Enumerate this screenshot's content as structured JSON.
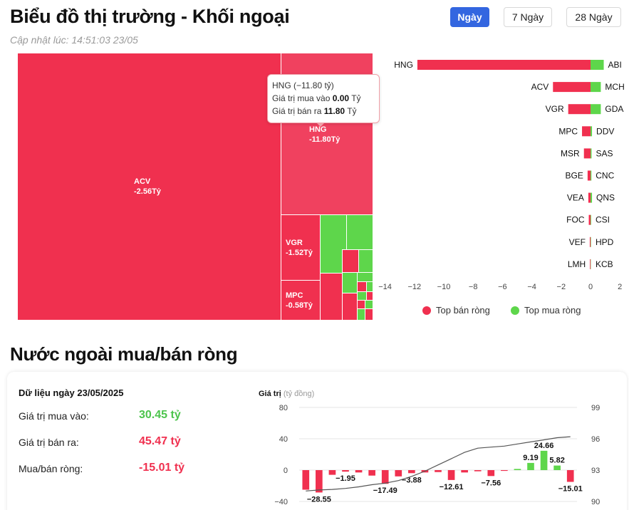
{
  "header": {
    "title": "Biểu đồ thị trường - Khối ngoại",
    "updated": "Cập nhật lúc: 14:51:03 23/05",
    "tabs": [
      {
        "label": "Ngày",
        "active": true
      },
      {
        "label": "7 Ngày",
        "active": false
      },
      {
        "label": "28 Ngày",
        "active": false
      }
    ]
  },
  "treemap": {
    "labels": {
      "acv_name": "ACV",
      "acv_value": "-2.56Tỷ",
      "hng_name": "HNG",
      "hng_value": "-11.80Tỷ",
      "vgr_name": "VGR",
      "vgr_value": "-1.52Tỷ",
      "mpc_name": "MPC",
      "mpc_value": "-0.58Tỷ"
    },
    "colors": {
      "sell": "#f0304f",
      "buy": "#5ed64b"
    }
  },
  "tooltip": {
    "title": "HNG (−11.80 tỷ)",
    "buy_label": "Giá trị mua vào",
    "buy_value": "0.00",
    "buy_unit": "Tỷ",
    "sell_label": "Giá trị bán ra",
    "sell_value": "11.80",
    "sell_unit": "Tỷ"
  },
  "legend": {
    "sell": "Top bán ròng",
    "buy": "Top mua ròng"
  },
  "net_section": {
    "title": "Nước ngoài mua/bán ròng",
    "date_label": "Dữ liệu ngày 23/05/2025",
    "rows": [
      {
        "label": "Giá trị mua vào:",
        "value": "30.45 tỷ"
      },
      {
        "label": "Giá trị bán ra:",
        "value": "45.47 tỷ"
      },
      {
        "label": "Mua/bán ròng:",
        "value": "-15.01 tỷ"
      }
    ],
    "chart_title": "Giá trị",
    "chart_unit": "(tỷ đồng)"
  },
  "chart_data": [
    {
      "type": "bar",
      "orientation": "horizontal",
      "rows": [
        {
          "sell": "HNG",
          "sell_value": -11.8,
          "buy": "ABI",
          "buy_value": 0.9
        },
        {
          "sell": "ACV",
          "sell_value": -2.56,
          "buy": "MCH",
          "buy_value": 0.7
        },
        {
          "sell": "VGR",
          "sell_value": -1.52,
          "buy": "GDA",
          "buy_value": 0.7
        },
        {
          "sell": "MPC",
          "sell_value": -0.58,
          "buy": "DDV",
          "buy_value": 0.1
        },
        {
          "sell": "MSR",
          "sell_value": -0.45,
          "buy": "SAS",
          "buy_value": 0.07
        },
        {
          "sell": "BGE",
          "sell_value": -0.2,
          "buy": "CNC",
          "buy_value": 0.06
        },
        {
          "sell": "VEA",
          "sell_value": -0.15,
          "buy": "QNS",
          "buy_value": 0.1
        },
        {
          "sell": "FOC",
          "sell_value": -0.12,
          "buy": "CSI",
          "buy_value": 0.04
        },
        {
          "sell": "VEF",
          "sell_value": -0.05,
          "buy": "HPD",
          "buy_value": 0.03
        },
        {
          "sell": "LMH",
          "sell_value": -0.04,
          "buy": "KCB",
          "buy_value": 0.02
        }
      ],
      "xlim": [
        -14,
        2
      ],
      "xticks": [
        "−14",
        "−12",
        "−10",
        "−8",
        "−6",
        "−4",
        "−2",
        "0",
        "2"
      ],
      "series": [
        {
          "name": "Top bán ròng",
          "color": "#f0304f"
        },
        {
          "name": "Top mua ròng",
          "color": "#5ed64b"
        }
      ]
    },
    {
      "type": "bar",
      "values": [
        -25,
        -28.55,
        -6,
        -1.95,
        -3,
        -7,
        -17.49,
        -8,
        -3.88,
        -3,
        -2.5,
        -12.61,
        -3,
        -1.5,
        -7.56,
        -1,
        1.5,
        9.19,
        24.66,
        5.82,
        -15.01
      ],
      "labels": [
        "",
        "−28.55",
        "",
        "−1.95",
        "",
        "",
        "−17.49",
        "",
        "−3.88",
        "",
        "",
        "−12.61",
        "",
        "",
        "−7.56",
        "",
        "",
        "9.19",
        "24.66",
        "5.82",
        "−15.01"
      ],
      "ylim": [
        -40,
        80
      ],
      "yticks": [
        "80",
        "40",
        "0",
        "−40"
      ],
      "y2lim": [
        90,
        99
      ],
      "y2ticks": [
        "99",
        "96",
        "93",
        "90"
      ],
      "line": [
        91.0,
        91.1,
        91.15,
        91.25,
        91.4,
        91.6,
        91.75,
        92.0,
        92.4,
        92.9,
        93.5,
        94.1,
        94.7,
        95.1,
        95.2,
        95.3,
        95.5,
        95.7,
        95.9,
        96.1,
        96.2
      ]
    }
  ]
}
